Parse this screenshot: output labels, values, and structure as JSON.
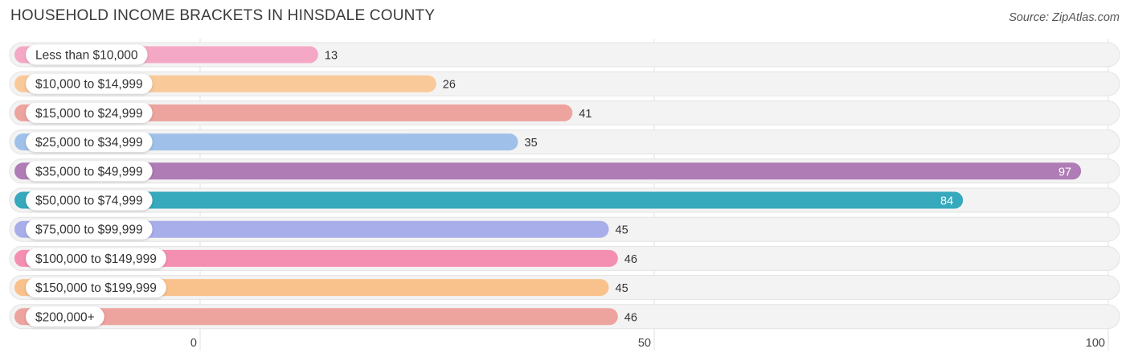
{
  "header": {
    "title": "HOUSEHOLD INCOME BRACKETS IN HINSDALE COUNTY",
    "source": "Source: ZipAtlas.com"
  },
  "chart_data": {
    "type": "bar",
    "orientation": "horizontal",
    "title": "HOUSEHOLD INCOME BRACKETS IN HINSDALE COUNTY",
    "categories": [
      "Less than $10,000",
      "$10,000 to $14,999",
      "$15,000 to $24,999",
      "$25,000 to $34,999",
      "$35,000 to $49,999",
      "$50,000 to $74,999",
      "$75,000 to $99,999",
      "$100,000 to $149,999",
      "$150,000 to $199,999",
      "$200,000+"
    ],
    "values": [
      13,
      26,
      41,
      35,
      97,
      84,
      45,
      46,
      45,
      46
    ],
    "colors": [
      "#f4a8c5",
      "#f9c99a",
      "#eda39e",
      "#9fc1e9",
      "#b07cb5",
      "#36a9bc",
      "#a8aee9",
      "#f48fb1",
      "#f9c28d",
      "#eda39e"
    ],
    "xlim": [
      0,
      100
    ],
    "xticks": [
      0,
      50,
      100
    ],
    "grid": true
  }
}
